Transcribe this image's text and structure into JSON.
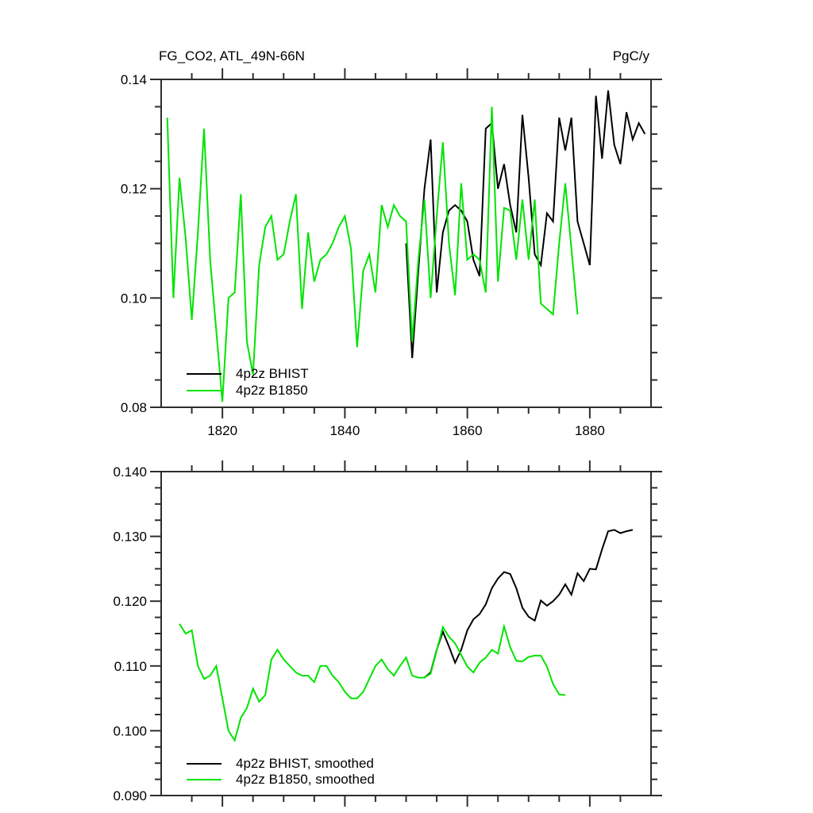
{
  "figure": {
    "background": "#ffffff",
    "axis_color": "#2e2e2e",
    "text_color": "#000000"
  },
  "chart_data": [
    {
      "id": "top",
      "type": "line",
      "title_left": "FG_CO2, ATL_49N-66N",
      "title_right": "PgC/y",
      "xlabel": "",
      "ylabel": "",
      "xlim": [
        1810,
        1890
      ],
      "ylim": [
        0.08,
        0.14
      ],
      "grid": false,
      "x_major_ticks": [
        1820,
        1840,
        1860,
        1880
      ],
      "x_tick_labels": [
        "1820",
        "1840",
        "1860",
        "1880"
      ],
      "show_x_tick_labels": true,
      "x_minor_step": 5,
      "y_major_ticks": [
        0.08,
        0.1,
        0.12,
        0.14
      ],
      "y_tick_labels": [
        "0.08",
        "0.10",
        "0.12",
        "0.14"
      ],
      "y_minor_step": 0.005,
      "legend_position": "lower-left-inside",
      "legend": [
        {
          "label": "4p2z BHIST",
          "color": "#000000"
        },
        {
          "label": "4p2z B1850",
          "color": "#00e400"
        }
      ],
      "series": [
        {
          "name": "4p2z BHIST",
          "color": "#000000",
          "points": [
            [
              1850,
              0.11
            ],
            [
              1851,
              0.089
            ],
            [
              1852,
              0.105
            ],
            [
              1853,
              0.12
            ],
            [
              1854,
              0.129
            ],
            [
              1855,
              0.101
            ],
            [
              1856,
              0.112
            ],
            [
              1857,
              0.116
            ],
            [
              1858,
              0.117
            ],
            [
              1859,
              0.116
            ],
            [
              1860,
              0.114
            ],
            [
              1861,
              0.107
            ],
            [
              1862,
              0.104
            ],
            [
              1863,
              0.131
            ],
            [
              1864,
              0.132
            ],
            [
              1865,
              0.12
            ],
            [
              1866,
              0.1245
            ],
            [
              1867,
              0.117
            ],
            [
              1868,
              0.112
            ],
            [
              1869,
              0.1335
            ],
            [
              1870,
              0.122
            ],
            [
              1871,
              0.108
            ],
            [
              1872,
              0.106
            ],
            [
              1873,
              0.1155
            ],
            [
              1874,
              0.114
            ],
            [
              1875,
              0.133
            ],
            [
              1876,
              0.127
            ],
            [
              1877,
              0.133
            ],
            [
              1878,
              0.114
            ],
            [
              1879,
              0.11
            ],
            [
              1880,
              0.106
            ],
            [
              1881,
              0.137
            ],
            [
              1882,
              0.1255
            ],
            [
              1883,
              0.138
            ],
            [
              1884,
              0.128
            ],
            [
              1885,
              0.1245
            ],
            [
              1886,
              0.134
            ],
            [
              1887,
              0.129
            ],
            [
              1888,
              0.132
            ],
            [
              1889,
              0.13
            ]
          ]
        },
        {
          "name": "4p2z B1850",
          "color": "#00e400",
          "points": [
            [
              1811,
              0.133
            ],
            [
              1812,
              0.1
            ],
            [
              1813,
              0.122
            ],
            [
              1814,
              0.111
            ],
            [
              1815,
              0.096
            ],
            [
              1816,
              0.112
            ],
            [
              1817,
              0.131
            ],
            [
              1818,
              0.107
            ],
            [
              1819,
              0.094
            ],
            [
              1820,
              0.081
            ],
            [
              1821,
              0.1
            ],
            [
              1822,
              0.101
            ],
            [
              1823,
              0.119
            ],
            [
              1824,
              0.092
            ],
            [
              1825,
              0.086
            ],
            [
              1826,
              0.106
            ],
            [
              1827,
              0.113
            ],
            [
              1828,
              0.115
            ],
            [
              1829,
              0.107
            ],
            [
              1830,
              0.108
            ],
            [
              1831,
              0.114
            ],
            [
              1832,
              0.119
            ],
            [
              1833,
              0.098
            ],
            [
              1834,
              0.112
            ],
            [
              1835,
              0.103
            ],
            [
              1836,
              0.107
            ],
            [
              1837,
              0.108
            ],
            [
              1838,
              0.11
            ],
            [
              1839,
              0.113
            ],
            [
              1840,
              0.115
            ],
            [
              1841,
              0.109
            ],
            [
              1842,
              0.091
            ],
            [
              1843,
              0.105
            ],
            [
              1844,
              0.108
            ],
            [
              1845,
              0.101
            ],
            [
              1846,
              0.117
            ],
            [
              1847,
              0.113
            ],
            [
              1848,
              0.117
            ],
            [
              1849,
              0.115
            ],
            [
              1850,
              0.114
            ],
            [
              1851,
              0.092
            ],
            [
              1852,
              0.107
            ],
            [
              1853,
              0.118
            ],
            [
              1854,
              0.1
            ],
            [
              1855,
              0.115
            ],
            [
              1856,
              0.1285
            ],
            [
              1857,
              0.11
            ],
            [
              1858,
              0.1005
            ],
            [
              1859,
              0.121
            ],
            [
              1860,
              0.107
            ],
            [
              1861,
              0.108
            ],
            [
              1862,
              0.107
            ],
            [
              1863,
              0.101
            ],
            [
              1864,
              0.135
            ],
            [
              1865,
              0.103
            ],
            [
              1866,
              0.1165
            ],
            [
              1867,
              0.116
            ],
            [
              1868,
              0.107
            ],
            [
              1869,
              0.118
            ],
            [
              1870,
              0.107
            ],
            [
              1871,
              0.118
            ],
            [
              1872,
              0.099
            ],
            [
              1873,
              0.098
            ],
            [
              1874,
              0.097
            ],
            [
              1875,
              0.11
            ],
            [
              1876,
              0.121
            ],
            [
              1877,
              0.109
            ],
            [
              1878,
              0.097
            ]
          ]
        }
      ]
    },
    {
      "id": "bottom",
      "type": "line",
      "title_left": "",
      "title_right": "",
      "xlabel": "",
      "ylabel": "",
      "xlim": [
        1810,
        1890
      ],
      "ylim": [
        0.09,
        0.14
      ],
      "grid": false,
      "x_major_ticks": [
        1820,
        1840,
        1860,
        1880
      ],
      "x_tick_labels": [],
      "show_x_tick_labels": false,
      "x_minor_step": 5,
      "y_major_ticks": [
        0.09,
        0.1,
        0.11,
        0.12,
        0.13,
        0.14
      ],
      "y_tick_labels": [
        "0.090",
        "0.100",
        "0.110",
        "0.120",
        "0.130",
        "0.140"
      ],
      "y_minor_step": 0.0025,
      "legend_position": "lower-left-inside",
      "legend": [
        {
          "label": "4p2z BHIST, smoothed",
          "color": "#000000"
        },
        {
          "label": "4p2z B1850, smoothed",
          "color": "#00e400"
        }
      ],
      "series": [
        {
          "name": "4p2z BHIST, smoothed",
          "color": "#000000",
          "points": [
            [
              1852,
              0.1082
            ],
            [
              1853,
              0.1082
            ],
            [
              1854,
              0.109
            ],
            [
              1855,
              0.1125
            ],
            [
              1856,
              0.1153
            ],
            [
              1857,
              0.113
            ],
            [
              1858,
              0.1105
            ],
            [
              1859,
              0.1125
            ],
            [
              1860,
              0.1155
            ],
            [
              1861,
              0.1172
            ],
            [
              1862,
              0.118
            ],
            [
              1863,
              0.1195
            ],
            [
              1864,
              0.122
            ],
            [
              1865,
              0.1235
            ],
            [
              1866,
              0.1245
            ],
            [
              1867,
              0.1242
            ],
            [
              1868,
              0.122
            ],
            [
              1869,
              0.119
            ],
            [
              1870,
              0.1176
            ],
            [
              1871,
              0.117
            ],
            [
              1872,
              0.1201
            ],
            [
              1873,
              0.1193
            ],
            [
              1874,
              0.12
            ],
            [
              1875,
              0.121
            ],
            [
              1876,
              0.1226
            ],
            [
              1877,
              0.121
            ],
            [
              1878,
              0.1243
            ],
            [
              1879,
              0.1231
            ],
            [
              1880,
              0.125
            ],
            [
              1881,
              0.1249
            ],
            [
              1882,
              0.128
            ],
            [
              1883,
              0.1308
            ],
            [
              1884,
              0.131
            ],
            [
              1885,
              0.1305
            ],
            [
              1886,
              0.1308
            ],
            [
              1887,
              0.131
            ]
          ]
        },
        {
          "name": "4p2z B1850, smoothed",
          "color": "#00e400",
          "points": [
            [
              1813,
              0.1165
            ],
            [
              1814,
              0.115
            ],
            [
              1815,
              0.1155
            ],
            [
              1816,
              0.11
            ],
            [
              1817,
              0.108
            ],
            [
              1818,
              0.1085
            ],
            [
              1819,
              0.11
            ],
            [
              1820,
              0.105
            ],
            [
              1821,
              0.1
            ],
            [
              1822,
              0.0985
            ],
            [
              1823,
              0.102
            ],
            [
              1824,
              0.1035
            ],
            [
              1825,
              0.1065
            ],
            [
              1826,
              0.1045
            ],
            [
              1827,
              0.1055
            ],
            [
              1828,
              0.111
            ],
            [
              1829,
              0.1125
            ],
            [
              1830,
              0.111
            ],
            [
              1831,
              0.11
            ],
            [
              1832,
              0.109
            ],
            [
              1833,
              0.1085
            ],
            [
              1834,
              0.1085
            ],
            [
              1835,
              0.1075
            ],
            [
              1836,
              0.11
            ],
            [
              1837,
              0.11
            ],
            [
              1838,
              0.1085
            ],
            [
              1839,
              0.1075
            ],
            [
              1840,
              0.106
            ],
            [
              1841,
              0.105
            ],
            [
              1842,
              0.105
            ],
            [
              1843,
              0.106
            ],
            [
              1844,
              0.108
            ],
            [
              1845,
              0.11
            ],
            [
              1846,
              0.111
            ],
            [
              1847,
              0.1095
            ],
            [
              1848,
              0.1085
            ],
            [
              1849,
              0.11
            ],
            [
              1850,
              0.1113
            ],
            [
              1851,
              0.1085
            ],
            [
              1852,
              0.1082
            ],
            [
              1853,
              0.1082
            ],
            [
              1854,
              0.1088
            ],
            [
              1855,
              0.1124
            ],
            [
              1856,
              0.116
            ],
            [
              1857,
              0.1145
            ],
            [
              1858,
              0.1135
            ],
            [
              1859,
              0.1117
            ],
            [
              1860,
              0.1099
            ],
            [
              1861,
              0.109
            ],
            [
              1862,
              0.1105
            ],
            [
              1863,
              0.1113
            ],
            [
              1864,
              0.1125
            ],
            [
              1865,
              0.1119
            ],
            [
              1866,
              0.1161
            ],
            [
              1867,
              0.1129
            ],
            [
              1868,
              0.1108
            ],
            [
              1869,
              0.1107
            ],
            [
              1870,
              0.1114
            ],
            [
              1871,
              0.1116
            ],
            [
              1872,
              0.1116
            ],
            [
              1873,
              0.1099
            ],
            [
              1874,
              0.1072
            ],
            [
              1875,
              0.1056
            ],
            [
              1876,
              0.1055
            ]
          ]
        }
      ]
    }
  ]
}
